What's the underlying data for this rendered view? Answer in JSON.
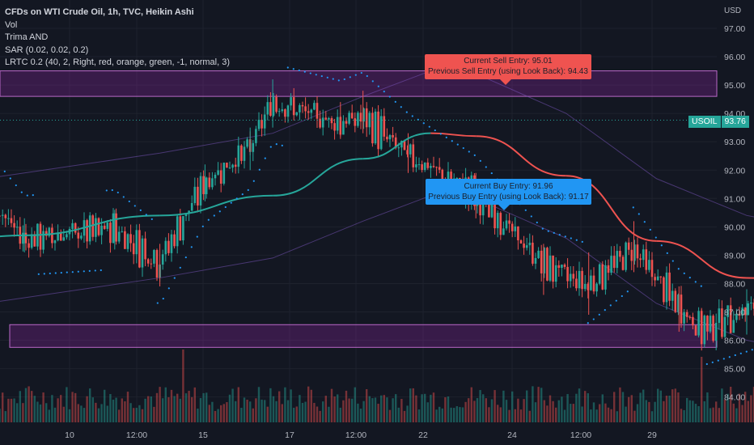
{
  "legend": {
    "title": "CFDs on WTI Crude Oil, 1h, TVC, Heikin Ashi",
    "line2": "Vol",
    "line3": "Trima AND",
    "line4": "SAR (0.02, 0.02, 0.2)",
    "line5": "LRTC 0.2 (40, 2, Right, red, orange, green, -1, normal, 3)"
  },
  "price_axis": {
    "currency": "USD",
    "ticks": [
      "97.00",
      "96.00",
      "95.00",
      "94.00",
      "93.00",
      "92.00",
      "91.00",
      "90.00",
      "89.00",
      "88.00",
      "87.00",
      "86.00",
      "85.00",
      "84.00"
    ]
  },
  "ticker": {
    "symbol": "USOIL",
    "value": "93.76"
  },
  "sell_callout": {
    "line1": "Current Sell Entry: 95.01",
    "line2": "Previous Sell Entry (using Look Back): 94.43"
  },
  "buy_callout": {
    "line1": "Current Buy Entry: 91.96",
    "line2": "Previous Buy Entry (using Look Back): 91.17"
  },
  "colors": {
    "background": "#131722",
    "up": "#26a69a",
    "down": "#ef5350",
    "zone": "#9c27b0",
    "trima_up": "#4fc3f7",
    "sar": "#2196f3",
    "channel_upper": "#ef5350",
    "channel_mid": "#ff9800",
    "channel_lower": "#4caf50"
  },
  "chart_data": {
    "type": "candlestick",
    "title": "CFDs on WTI Crude Oil, 1h, TVC, Heikin Ashi",
    "ylabel": "USD",
    "ylim": [
      83.65,
      97.7
    ],
    "x_ticks": [
      "10",
      "12:00",
      "15",
      "17",
      "12:00",
      "22",
      "24",
      "12:00",
      "29"
    ],
    "grid": true,
    "last_price": 93.76,
    "zones": [
      {
        "name": "resistance",
        "from": 94.6,
        "to": 95.5
      },
      {
        "name": "support",
        "from": 85.75,
        "to": 86.55
      }
    ],
    "keypoints": [
      {
        "t": "8 00:00",
        "o": 88.8,
        "c": 89.2,
        "h": 89.4,
        "l": 87.7
      },
      {
        "t": "8 12:00",
        "o": 90.5,
        "c": 90.8,
        "h": 91.3,
        "l": 90.1
      },
      {
        "t": "9 00:00",
        "o": 91.3,
        "c": 91.6,
        "h": 92.6,
        "l": 90.7
      },
      {
        "t": "9 12:00",
        "o": 89.4,
        "c": 89.7,
        "h": 90.3,
        "l": 89.1
      },
      {
        "t": "10 12:00",
        "o": 89.8,
        "c": 90.1,
        "h": 90.6,
        "l": 89.2
      },
      {
        "t": "11 00:00",
        "o": 88.9,
        "c": 88.6,
        "h": 89.4,
        "l": 87.9
      },
      {
        "t": "11 12:00",
        "o": 91.4,
        "c": 91.7,
        "h": 92.2,
        "l": 90.9
      },
      {
        "t": "12 00:00",
        "o": 92.6,
        "c": 92.9,
        "h": 93.5,
        "l": 92.0
      },
      {
        "t": "12 06:00",
        "o": 94.1,
        "c": 94.7,
        "h": 95.2,
        "l": 93.5
      },
      {
        "t": "13 00:00",
        "o": 93.7,
        "c": 93.6,
        "h": 94.4,
        "l": 93.1
      },
      {
        "t": "13 06:00",
        "o": 94.1,
        "c": 93.6,
        "h": 94.8,
        "l": 93.3
      },
      {
        "t": "13 18:00",
        "o": 92.8,
        "c": 92.3,
        "h": 93.3,
        "l": 91.9
      },
      {
        "t": "14 12:00",
        "o": 91.5,
        "c": 90.8,
        "h": 91.9,
        "l": 90.3
      },
      {
        "t": "15 06:00",
        "o": 88.9,
        "c": 88.5,
        "h": 89.4,
        "l": 87.6
      },
      {
        "t": "15 18:00",
        "o": 88.2,
        "c": 87.7,
        "h": 89.1,
        "l": 86.9
      },
      {
        "t": "16 06:00",
        "o": 89.5,
        "c": 89.0,
        "h": 90.2,
        "l": 88.4
      },
      {
        "t": "16 18:00",
        "o": 87.4,
        "c": 87.0,
        "h": 87.9,
        "l": 86.3
      },
      {
        "t": "17 00:00",
        "o": 86.6,
        "c": 86.2,
        "h": 87.1,
        "l": 85.9
      },
      {
        "t": "17 12:00",
        "o": 86.8,
        "c": 87.3,
        "h": 87.8,
        "l": 86.2
      },
      {
        "t": "18 00:00",
        "o": 87.4,
        "c": 87.9,
        "h": 88.2,
        "l": 86.9
      },
      {
        "t": "18 12:00",
        "o": 88.1,
        "c": 88.5,
        "h": 88.9,
        "l": 87.8
      },
      {
        "t": "19 00:00",
        "o": 89.8,
        "c": 90.2,
        "h": 90.6,
        "l": 89.3
      },
      {
        "t": "19 12:00",
        "o": 90.4,
        "c": 90.6,
        "h": 91.0,
        "l": 89.8
      },
      {
        "t": "20 00:00",
        "o": 89.3,
        "c": 88.9,
        "h": 89.9,
        "l": 88.5
      },
      {
        "t": "20 12:00",
        "o": 90.6,
        "c": 90.9,
        "h": 92.0,
        "l": 90.0
      },
      {
        "t": "21 00:00",
        "o": 90.2,
        "c": 89.9,
        "h": 90.8,
        "l": 89.4
      },
      {
        "t": "21 12:00",
        "o": 89.4,
        "c": 89.0,
        "h": 89.8,
        "l": 88.4
      },
      {
        "t": "22 00:00",
        "o": 87.6,
        "c": 86.7,
        "h": 89.7,
        "l": 85.8
      },
      {
        "t": "22 12:00",
        "o": 89.5,
        "c": 90.3,
        "h": 90.8,
        "l": 88.8
      },
      {
        "t": "23 00:00",
        "o": 91.1,
        "c": 91.6,
        "h": 92.1,
        "l": 90.6
      },
      {
        "t": "23 06:00",
        "o": 93.5,
        "c": 93.9,
        "h": 94.3,
        "l": 93.0
      },
      {
        "t": "23 12:00",
        "o": 93.6,
        "c": 93.76,
        "h": 94.0,
        "l": 93.3
      }
    ],
    "trima": [
      {
        "t": "8 00:00",
        "v": 89.0
      },
      {
        "t": "9 12:00",
        "v": 89.7
      },
      {
        "t": "11 00:00",
        "v": 90.4
      },
      {
        "t": "12 06:00",
        "v": 91.1
      },
      {
        "t": "13 06:00",
        "v": 92.4
      },
      {
        "t": "14 00:00",
        "v": 93.3
      },
      {
        "t": "14 12:00",
        "v": 93.2
      },
      {
        "t": "15 12:00",
        "v": 91.8
      },
      {
        "t": "16 12:00",
        "v": 89.5
      },
      {
        "t": "17 12:00",
        "v": 88.2
      },
      {
        "t": "18 12:00",
        "v": 87.6
      },
      {
        "t": "19 12:00",
        "v": 87.8
      },
      {
        "t": "20 12:00",
        "v": 88.9
      },
      {
        "t": "21 12:00",
        "v": 89.8
      },
      {
        "t": "22 12:00",
        "v": 89.9
      },
      {
        "t": "23 06:00",
        "v": 89.9
      },
      {
        "t": "24 00:00",
        "v": 90.3
      }
    ],
    "volume": {
      "scale": "relative",
      "peaks": [
        {
          "t": "11 06:00",
          "v": 1.0
        },
        {
          "t": "17 00:00",
          "v": 0.9
        },
        {
          "t": "22 00:00",
          "v": 1.0
        }
      ]
    },
    "channel": {
      "start": {
        "t": "22 00:00",
        "upper": 89.7,
        "mid": 87.9,
        "lower": 86.2
      },
      "end": {
        "t": "24 00:00",
        "upper": 97.8,
        "mid": 96.0,
        "lower": 94.3
      }
    },
    "sell_entry": 95.01,
    "sell_entry_previous": 94.43,
    "buy_entry": 91.96,
    "buy_entry_previous": 91.17
  }
}
